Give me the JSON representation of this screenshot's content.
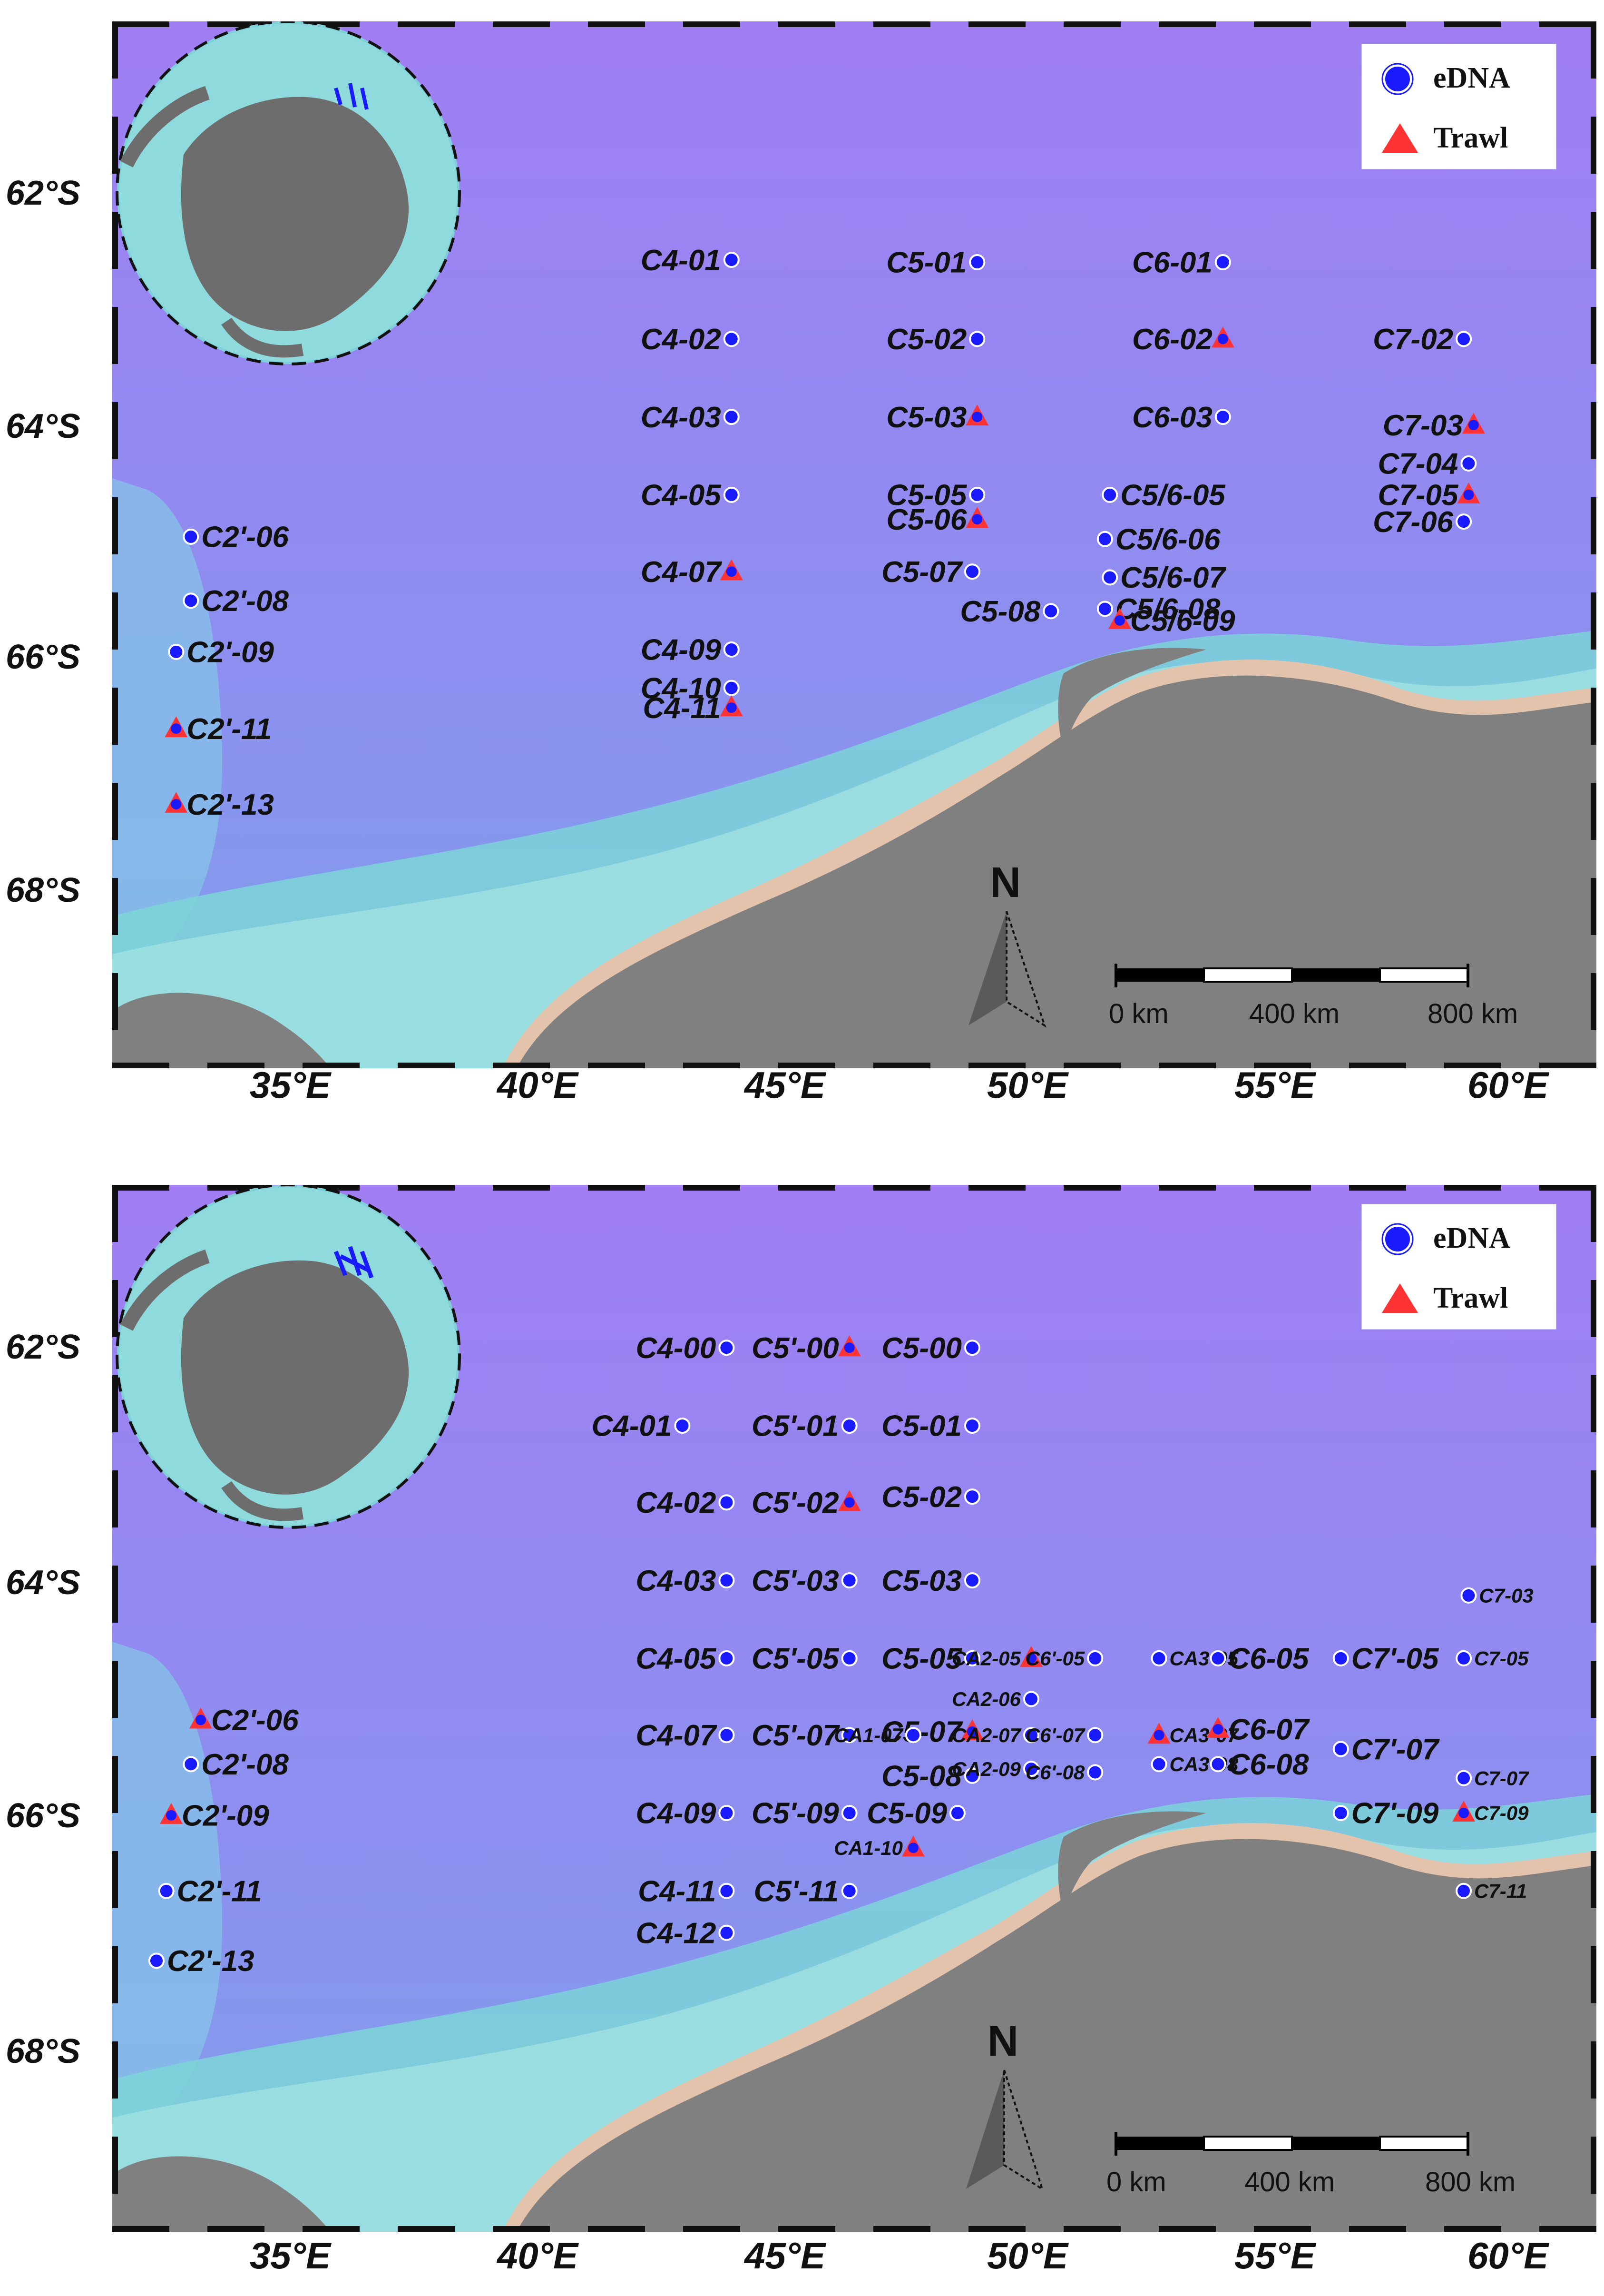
{
  "legend": {
    "edna_label": "eDNA",
    "trawl_label": "Trawl",
    "colors": {
      "edna": "#1a1aff",
      "trawl": "#ff3333"
    }
  },
  "north_label": "N",
  "scale": {
    "labels": [
      "0 km",
      "400 km",
      "800 km"
    ]
  },
  "colors": {
    "ocean_deep": "#9c86f2",
    "shelf": "#7fd0d8",
    "land": "#808080",
    "coast": "#e8c0a8"
  },
  "panels": [
    {
      "id": "top",
      "lat_labels": [
        "62°S",
        "64°S",
        "66°S",
        "68°S"
      ],
      "lon_labels": [
        "35°E",
        "40°E",
        "45°E",
        "50°E",
        "55°E",
        "60°E"
      ],
      "stations": [
        {
          "name": "C4-01",
          "lon": 44.6,
          "lat": 62.65,
          "type": "edna"
        },
        {
          "name": "C4-02",
          "lon": 44.6,
          "lat": 63.33,
          "type": "edna"
        },
        {
          "name": "C4-03",
          "lon": 44.6,
          "lat": 64.0,
          "type": "edna"
        },
        {
          "name": "C4-05",
          "lon": 44.6,
          "lat": 64.67,
          "type": "edna"
        },
        {
          "name": "C4-07",
          "lon": 44.6,
          "lat": 65.33,
          "type": "trawl"
        },
        {
          "name": "C4-09",
          "lon": 44.6,
          "lat": 66.0,
          "type": "edna"
        },
        {
          "name": "C4-10",
          "lon": 44.6,
          "lat": 66.33,
          "type": "edna"
        },
        {
          "name": "C4-11",
          "lon": 44.6,
          "lat": 66.5,
          "type": "trawl"
        },
        {
          "name": "C5-01",
          "lon": 49.6,
          "lat": 62.67,
          "type": "edna"
        },
        {
          "name": "C5-02",
          "lon": 49.6,
          "lat": 63.33,
          "type": "edna"
        },
        {
          "name": "C5-03",
          "lon": 49.6,
          "lat": 64.0,
          "type": "trawl"
        },
        {
          "name": "C5-05",
          "lon": 49.6,
          "lat": 64.67,
          "type": "edna"
        },
        {
          "name": "C5-06",
          "lon": 49.6,
          "lat": 64.88,
          "type": "trawl"
        },
        {
          "name": "C5-07",
          "lon": 49.5,
          "lat": 65.33,
          "type": "edna"
        },
        {
          "name": "C5-08",
          "lon": 51.1,
          "lat": 65.67,
          "type": "edna"
        },
        {
          "name": "C6-01",
          "lon": 54.6,
          "lat": 62.67,
          "type": "edna"
        },
        {
          "name": "C6-02",
          "lon": 54.6,
          "lat": 63.33,
          "type": "trawl"
        },
        {
          "name": "C6-03",
          "lon": 54.6,
          "lat": 64.0,
          "type": "edna"
        },
        {
          "name": "C5/6-05",
          "lon": 52.3,
          "lat": 64.67,
          "type": "edna"
        },
        {
          "name": "C5/6-06",
          "lon": 52.2,
          "lat": 65.05,
          "type": "edna"
        },
        {
          "name": "C5/6-07",
          "lon": 52.3,
          "lat": 65.38,
          "type": "edna"
        },
        {
          "name": "C5/6-08",
          "lon": 52.2,
          "lat": 65.65,
          "type": "edna"
        },
        {
          "name": "C5/6-09",
          "lon": 52.5,
          "lat": 65.75,
          "type": "trawl"
        },
        {
          "name": "C7-02",
          "lon": 59.5,
          "lat": 63.33,
          "type": "edna"
        },
        {
          "name": "C7-03",
          "lon": 59.7,
          "lat": 64.07,
          "type": "trawl"
        },
        {
          "name": "C7-04",
          "lon": 59.6,
          "lat": 64.4,
          "type": "edna"
        },
        {
          "name": "C7-05",
          "lon": 59.6,
          "lat": 64.67,
          "type": "trawl"
        },
        {
          "name": "C7-06",
          "lon": 59.5,
          "lat": 64.9,
          "type": "edna"
        },
        {
          "name": "C2'-06",
          "lon": 33.6,
          "lat": 65.03,
          "type": "edna"
        },
        {
          "name": "C2'-08",
          "lon": 33.6,
          "lat": 65.58,
          "type": "edna"
        },
        {
          "name": "C2'-09",
          "lon": 33.3,
          "lat": 66.02,
          "type": "edna"
        },
        {
          "name": "C2'-11",
          "lon": 33.3,
          "lat": 66.68,
          "type": "trawl"
        },
        {
          "name": "C2'-13",
          "lon": 33.3,
          "lat": 67.33,
          "type": "trawl"
        }
      ]
    },
    {
      "id": "bottom",
      "lat_labels": [
        "62°S",
        "64°S",
        "66°S",
        "68°S"
      ],
      "lon_labels": [
        "35°E",
        "40°E",
        "45°E",
        "50°E",
        "55°E",
        "60°E"
      ],
      "stations": [
        {
          "name": "C4-00",
          "lon": 44.5,
          "lat": 62.0,
          "type": "edna"
        },
        {
          "name": "C4-01",
          "lon": 43.6,
          "lat": 62.67,
          "type": "edna"
        },
        {
          "name": "C4-02",
          "lon": 44.5,
          "lat": 63.33,
          "type": "edna"
        },
        {
          "name": "C4-03",
          "lon": 44.5,
          "lat": 64.0,
          "type": "edna"
        },
        {
          "name": "C4-05",
          "lon": 44.5,
          "lat": 64.67,
          "type": "edna"
        },
        {
          "name": "C4-07",
          "lon": 44.5,
          "lat": 65.33,
          "type": "edna"
        },
        {
          "name": "C4-09",
          "lon": 44.5,
          "lat": 66.0,
          "type": "edna"
        },
        {
          "name": "C4-11",
          "lon": 44.5,
          "lat": 66.67,
          "type": "edna"
        },
        {
          "name": "C4-12",
          "lon": 44.5,
          "lat": 67.03,
          "type": "edna"
        },
        {
          "name": "C5'-00",
          "lon": 47.0,
          "lat": 62.0,
          "type": "trawl"
        },
        {
          "name": "C5'-01",
          "lon": 47.0,
          "lat": 62.67,
          "type": "edna"
        },
        {
          "name": "C5'-02",
          "lon": 47.0,
          "lat": 63.33,
          "type": "trawl"
        },
        {
          "name": "C5'-03",
          "lon": 47.0,
          "lat": 64.0,
          "type": "edna"
        },
        {
          "name": "C5'-05",
          "lon": 47.0,
          "lat": 64.67,
          "type": "edna"
        },
        {
          "name": "C5'-07",
          "lon": 47.0,
          "lat": 65.33,
          "type": "edna"
        },
        {
          "name": "C5'-09",
          "lon": 47.0,
          "lat": 66.0,
          "type": "edna"
        },
        {
          "name": "C5'-11",
          "lon": 47.0,
          "lat": 66.67,
          "type": "edna"
        },
        {
          "name": "C5-00",
          "lon": 49.5,
          "lat": 62.0,
          "type": "edna"
        },
        {
          "name": "C5-01",
          "lon": 49.5,
          "lat": 62.67,
          "type": "edna"
        },
        {
          "name": "C5-02",
          "lon": 49.5,
          "lat": 63.28,
          "type": "edna"
        },
        {
          "name": "C5-03",
          "lon": 49.5,
          "lat": 64.0,
          "type": "edna"
        },
        {
          "name": "C5-05",
          "lon": 49.5,
          "lat": 64.67,
          "type": "edna"
        },
        {
          "name": "C5-07",
          "lon": 49.5,
          "lat": 65.3,
          "type": "trawl"
        },
        {
          "name": "C5-08",
          "lon": 49.5,
          "lat": 65.68,
          "type": "edna"
        },
        {
          "name": "C5-09",
          "lon": 49.2,
          "lat": 66.0,
          "type": "edna"
        },
        {
          "name": "CA1-07",
          "lon": 48.3,
          "lat": 65.33,
          "type": "edna"
        },
        {
          "name": "CA1-10",
          "lon": 48.3,
          "lat": 66.3,
          "type": "trawl"
        },
        {
          "name": "CA2-05",
          "lon": 50.7,
          "lat": 64.67,
          "type": "trawl"
        },
        {
          "name": "CA2-06",
          "lon": 50.7,
          "lat": 65.02,
          "type": "edna"
        },
        {
          "name": "CA2-07",
          "lon": 50.7,
          "lat": 65.33,
          "type": "edna"
        },
        {
          "name": "CA2-09",
          "lon": 50.7,
          "lat": 65.62,
          "type": "edna"
        },
        {
          "name": "C6'-05",
          "lon": 52.0,
          "lat": 64.67,
          "type": "edna"
        },
        {
          "name": "C6'-07",
          "lon": 52.0,
          "lat": 65.33,
          "type": "edna"
        },
        {
          "name": "C6'-08",
          "lon": 52.0,
          "lat": 65.65,
          "type": "edna"
        },
        {
          "name": "CA3-05",
          "lon": 53.3,
          "lat": 64.67,
          "type": "edna"
        },
        {
          "name": "CA3-07",
          "lon": 53.3,
          "lat": 65.33,
          "type": "trawl"
        },
        {
          "name": "CA3-08",
          "lon": 53.3,
          "lat": 65.58,
          "type": "edna"
        },
        {
          "name": "C6-05",
          "lon": 54.5,
          "lat": 64.67,
          "type": "edna"
        },
        {
          "name": "C6-07",
          "lon": 54.5,
          "lat": 65.28,
          "type": "trawl"
        },
        {
          "name": "C6-08",
          "lon": 54.5,
          "lat": 65.58,
          "type": "edna"
        },
        {
          "name": "C7'-05",
          "lon": 57.0,
          "lat": 64.67,
          "type": "edna"
        },
        {
          "name": "C7'-07",
          "lon": 57.0,
          "lat": 65.45,
          "type": "edna"
        },
        {
          "name": "C7'-09",
          "lon": 57.0,
          "lat": 66.0,
          "type": "edna"
        },
        {
          "name": "C7-03",
          "lon": 59.6,
          "lat": 64.13,
          "type": "edna"
        },
        {
          "name": "C7-05",
          "lon": 59.5,
          "lat": 64.67,
          "type": "edna"
        },
        {
          "name": "C7-07",
          "lon": 59.5,
          "lat": 65.7,
          "type": "edna"
        },
        {
          "name": "C7-09",
          "lon": 59.5,
          "lat": 66.0,
          "type": "trawl"
        },
        {
          "name": "C7-11",
          "lon": 59.5,
          "lat": 66.67,
          "type": "edna"
        },
        {
          "name": "C2'-06",
          "lon": 33.8,
          "lat": 65.2,
          "type": "trawl"
        },
        {
          "name": "C2'-08",
          "lon": 33.6,
          "lat": 65.58,
          "type": "edna"
        },
        {
          "name": "C2'-09",
          "lon": 33.2,
          "lat": 66.02,
          "type": "trawl"
        },
        {
          "name": "C2'-11",
          "lon": 33.1,
          "lat": 66.67,
          "type": "edna"
        },
        {
          "name": "C2'-13",
          "lon": 32.9,
          "lat": 67.27,
          "type": "edna"
        }
      ]
    }
  ]
}
